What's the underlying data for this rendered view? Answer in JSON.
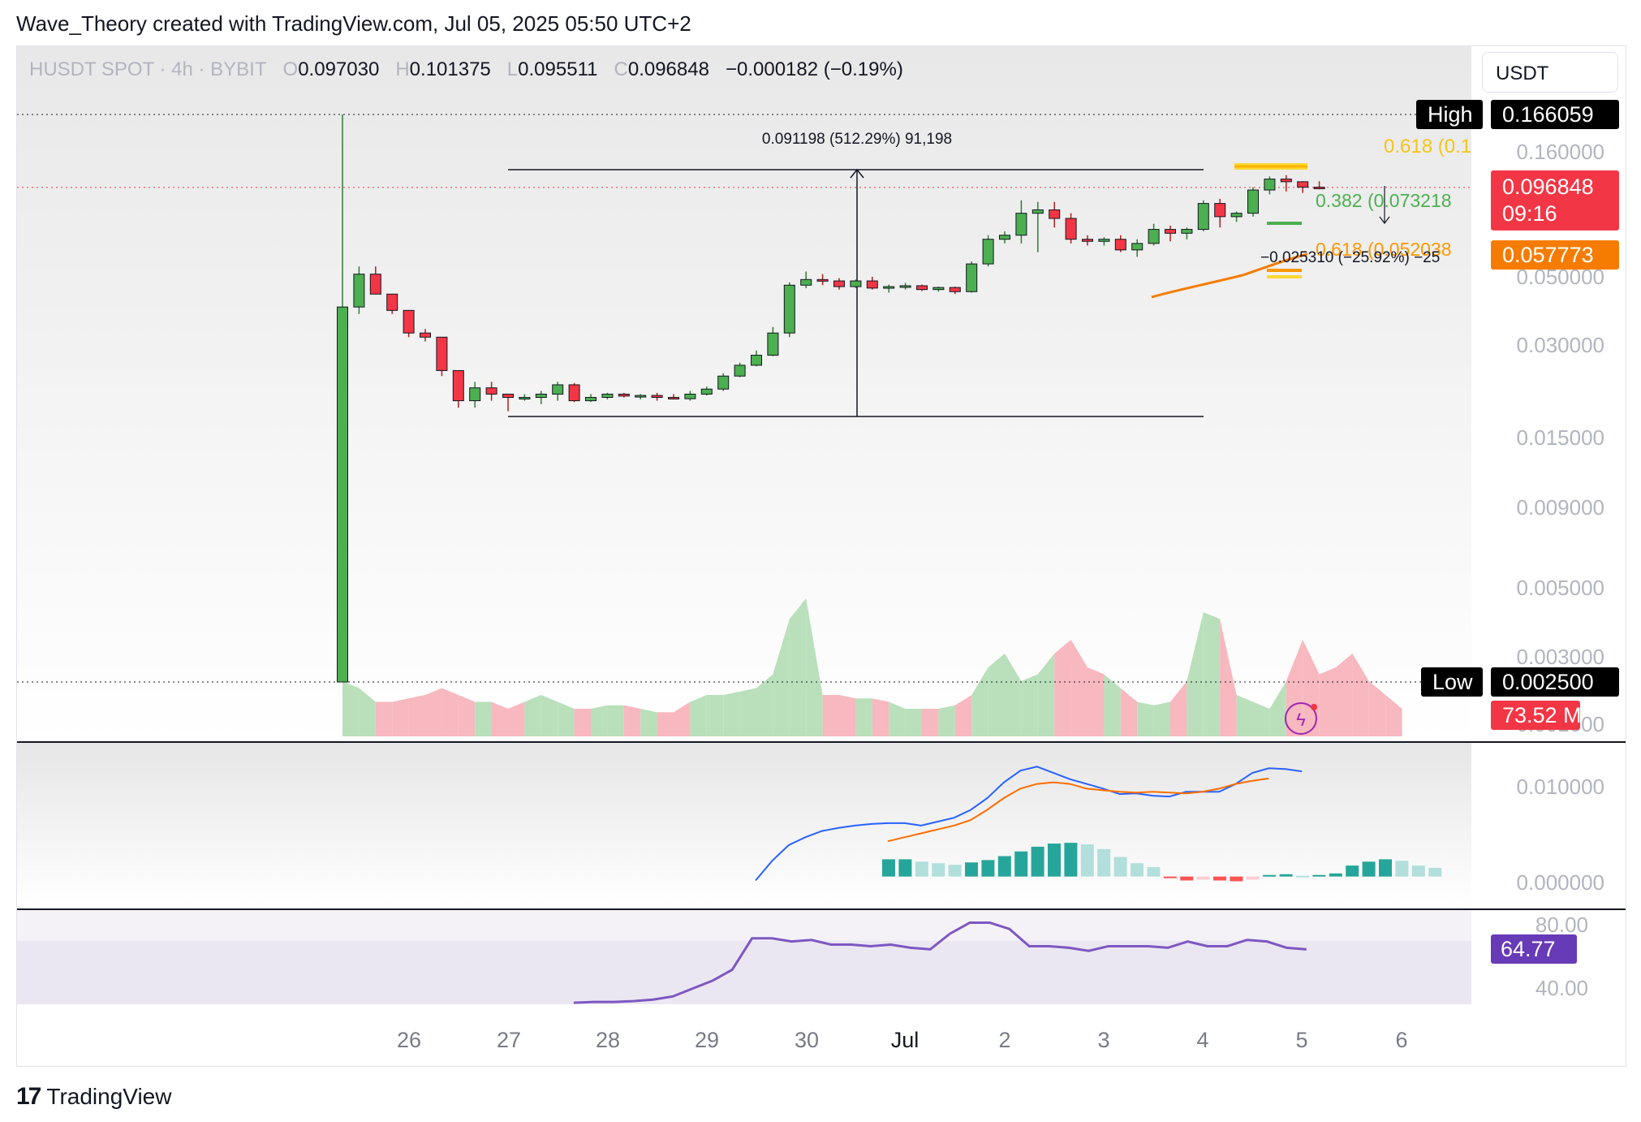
{
  "header": {
    "title": "Wave_Theory created with TradingView.com, Jul 05, 2025 05:50 UTC+2"
  },
  "symbol": {
    "name": "HUSDT SPOT · 4h · BYBIT",
    "o_label": "O",
    "open": "0.097030",
    "h_label": "H",
    "high": "0.101375",
    "l_label": "L",
    "low": "0.095511",
    "c_label": "C",
    "close": "0.096848",
    "change": "−0.000182 (−0.19%)"
  },
  "currency": "USDT",
  "footer": {
    "brand": "TradingView"
  },
  "price_axis": {
    "ticks": [
      "0.160000",
      "0.050000",
      "0.030000",
      "0.015000",
      "0.009000",
      "0.005000",
      "0.003000",
      "0.001000"
    ],
    "high_label": "High",
    "high_value": "0.166059",
    "low_label": "Low",
    "low_value": "0.002500",
    "last_price": "0.096848",
    "countdown": "09:16",
    "ema_value": "0.057773",
    "volume_value": "73.52 M"
  },
  "annotations": {
    "measure": "0.091198 (512.29%) 91,198",
    "fib_top": "0.618 (0.1",
    "fib_382": "0.382 (0.073218",
    "fib_618": "0.618 (0.052038",
    "short_measure": "−0.025310 (−25.92%) −25"
  },
  "macd_axis": {
    "ticks": [
      "0.010000",
      "0.000000"
    ]
  },
  "rsi_axis": {
    "ticks": [
      "80.00",
      "40.00"
    ],
    "value": "64.77"
  },
  "time_axis": {
    "labels": [
      "26",
      "27",
      "28",
      "29",
      "30",
      "Jul",
      "2",
      "3",
      "4",
      "5",
      "6"
    ]
  },
  "colors": {
    "up": "#4caf50",
    "down": "#f23645",
    "ema": "#f57c00",
    "macd": "#2962ff",
    "signal": "#ff6d00",
    "rsi": "#7e57c2"
  },
  "chart_data": [
    {
      "type": "candlestick",
      "title": "HUSDT SPOT · 4h · BYBIT",
      "x": [
        "Jun 26",
        "Jun 27",
        "Jun 28",
        "Jun 29",
        "Jun 30",
        "Jul 1",
        "Jul 2",
        "Jul 3",
        "Jul 4",
        "Jul 5"
      ],
      "scale": "log",
      "ylim": [
        0.001,
        0.17
      ],
      "candles": [
        {
          "o": 0.0025,
          "h": 0.166,
          "l": 0.0025,
          "c": 0.04
        },
        {
          "o": 0.04,
          "h": 0.054,
          "l": 0.038,
          "c": 0.051
        },
        {
          "o": 0.051,
          "h": 0.054,
          "l": 0.044,
          "c": 0.044
        },
        {
          "o": 0.044,
          "h": 0.044,
          "l": 0.038,
          "c": 0.039
        },
        {
          "o": 0.039,
          "h": 0.039,
          "l": 0.032,
          "c": 0.033
        },
        {
          "o": 0.033,
          "h": 0.034,
          "l": 0.031,
          "c": 0.032
        },
        {
          "o": 0.032,
          "h": 0.032,
          "l": 0.024,
          "c": 0.025
        },
        {
          "o": 0.025,
          "h": 0.025,
          "l": 0.019,
          "c": 0.02
        },
        {
          "o": 0.02,
          "h": 0.023,
          "l": 0.019,
          "c": 0.022
        },
        {
          "o": 0.022,
          "h": 0.023,
          "l": 0.02,
          "c": 0.021
        },
        {
          "o": 0.021,
          "h": 0.021,
          "l": 0.0185,
          "c": 0.0205
        },
        {
          "o": 0.0205,
          "h": 0.021,
          "l": 0.02,
          "c": 0.0205
        },
        {
          "o": 0.0205,
          "h": 0.0215,
          "l": 0.0195,
          "c": 0.021
        },
        {
          "o": 0.021,
          "h": 0.023,
          "l": 0.02,
          "c": 0.0225
        },
        {
          "o": 0.0225,
          "h": 0.0228,
          "l": 0.0198,
          "c": 0.02
        },
        {
          "o": 0.02,
          "h": 0.021,
          "l": 0.0198,
          "c": 0.0205
        },
        {
          "o": 0.0205,
          "h": 0.0212,
          "l": 0.0202,
          "c": 0.021
        },
        {
          "o": 0.021,
          "h": 0.0212,
          "l": 0.0205,
          "c": 0.0207
        },
        {
          "o": 0.0207,
          "h": 0.021,
          "l": 0.0202,
          "c": 0.0208
        },
        {
          "o": 0.0208,
          "h": 0.0212,
          "l": 0.02,
          "c": 0.0205
        },
        {
          "o": 0.0205,
          "h": 0.021,
          "l": 0.0202,
          "c": 0.0203
        },
        {
          "o": 0.0203,
          "h": 0.0215,
          "l": 0.02,
          "c": 0.021
        },
        {
          "o": 0.021,
          "h": 0.0222,
          "l": 0.0208,
          "c": 0.0218
        },
        {
          "o": 0.0218,
          "h": 0.0245,
          "l": 0.0215,
          "c": 0.024
        },
        {
          "o": 0.024,
          "h": 0.0265,
          "l": 0.0238,
          "c": 0.026
        },
        {
          "o": 0.026,
          "h": 0.029,
          "l": 0.0258,
          "c": 0.028
        },
        {
          "o": 0.028,
          "h": 0.0345,
          "l": 0.0278,
          "c": 0.033
        },
        {
          "o": 0.033,
          "h": 0.048,
          "l": 0.032,
          "c": 0.047
        },
        {
          "o": 0.047,
          "h": 0.052,
          "l": 0.046,
          "c": 0.049
        },
        {
          "o": 0.049,
          "h": 0.051,
          "l": 0.047,
          "c": 0.0485
        },
        {
          "o": 0.0485,
          "h": 0.0495,
          "l": 0.0455,
          "c": 0.0465
        },
        {
          "o": 0.0465,
          "h": 0.049,
          "l": 0.046,
          "c": 0.0485
        },
        {
          "o": 0.0485,
          "h": 0.05,
          "l": 0.0455,
          "c": 0.046
        },
        {
          "o": 0.046,
          "h": 0.0472,
          "l": 0.0445,
          "c": 0.0465
        },
        {
          "o": 0.0465,
          "h": 0.0478,
          "l": 0.0455,
          "c": 0.0468
        },
        {
          "o": 0.0468,
          "h": 0.0472,
          "l": 0.045,
          "c": 0.0455
        },
        {
          "o": 0.0455,
          "h": 0.0465,
          "l": 0.0448,
          "c": 0.0462
        },
        {
          "o": 0.0462,
          "h": 0.0465,
          "l": 0.044,
          "c": 0.0448
        },
        {
          "o": 0.0448,
          "h": 0.056,
          "l": 0.0445,
          "c": 0.055
        },
        {
          "o": 0.055,
          "h": 0.068,
          "l": 0.054,
          "c": 0.066
        },
        {
          "o": 0.066,
          "h": 0.07,
          "l": 0.064,
          "c": 0.068
        },
        {
          "o": 0.068,
          "h": 0.088,
          "l": 0.064,
          "c": 0.08
        },
        {
          "o": 0.08,
          "h": 0.087,
          "l": 0.06,
          "c": 0.082
        },
        {
          "o": 0.082,
          "h": 0.087,
          "l": 0.072,
          "c": 0.077
        },
        {
          "o": 0.077,
          "h": 0.08,
          "l": 0.064,
          "c": 0.066
        },
        {
          "o": 0.066,
          "h": 0.068,
          "l": 0.063,
          "c": 0.065
        },
        {
          "o": 0.065,
          "h": 0.067,
          "l": 0.063,
          "c": 0.066
        },
        {
          "o": 0.066,
          "h": 0.068,
          "l": 0.06,
          "c": 0.061
        },
        {
          "o": 0.061,
          "h": 0.066,
          "l": 0.058,
          "c": 0.064
        },
        {
          "o": 0.064,
          "h": 0.074,
          "l": 0.063,
          "c": 0.071
        },
        {
          "o": 0.071,
          "h": 0.073,
          "l": 0.065,
          "c": 0.069
        },
        {
          "o": 0.069,
          "h": 0.072,
          "l": 0.066,
          "c": 0.071
        },
        {
          "o": 0.071,
          "h": 0.088,
          "l": 0.07,
          "c": 0.086
        },
        {
          "o": 0.086,
          "h": 0.089,
          "l": 0.072,
          "c": 0.078
        },
        {
          "o": 0.078,
          "h": 0.081,
          "l": 0.075,
          "c": 0.08
        },
        {
          "o": 0.08,
          "h": 0.097,
          "l": 0.078,
          "c": 0.095
        },
        {
          "o": 0.095,
          "h": 0.105,
          "l": 0.092,
          "c": 0.103
        },
        {
          "o": 0.103,
          "h": 0.106,
          "l": 0.094,
          "c": 0.101
        },
        {
          "o": 0.101,
          "h": 0.101375,
          "l": 0.093,
          "c": 0.097
        },
        {
          "o": 0.09703,
          "h": 0.101375,
          "l": 0.095511,
          "c": 0.096848
        }
      ]
    },
    {
      "type": "area",
      "title": "Volume",
      "values": [
        8,
        7,
        5,
        5,
        5.5,
        6,
        7,
        6,
        5,
        5,
        4,
        5,
        6,
        5,
        4,
        4,
        4.5,
        4.5,
        4,
        3.5,
        3.5,
        5,
        6,
        6,
        6.5,
        7,
        9,
        17,
        20,
        6,
        6,
        5.5,
        5.5,
        5,
        4,
        4,
        4,
        4.5,
        6,
        10,
        12,
        8,
        9,
        12,
        14,
        10,
        9,
        7,
        5,
        4.5,
        5,
        8,
        18,
        17,
        6,
        5,
        4,
        8,
        14,
        9,
        10,
        12,
        8,
        6,
        4
      ]
    },
    {
      "type": "line",
      "title": "MACD",
      "ylim": [
        -0.002,
        0.016
      ],
      "series": [
        {
          "name": "MACD",
          "values": [
            -0.0005,
            0.002,
            0.004,
            0.005,
            0.0058,
            0.0062,
            0.0065,
            0.0067,
            0.0068,
            0.0068,
            0.0065,
            0.007,
            0.0075,
            0.0085,
            0.01,
            0.012,
            0.0135,
            0.014,
            0.0132,
            0.0124,
            0.0118,
            0.0112,
            0.0105,
            0.0106,
            0.0103,
            0.0102,
            0.0108,
            0.0108,
            0.0108,
            0.0118,
            0.0132,
            0.0138,
            0.0137,
            0.0134
          ]
        },
        {
          "name": "Signal",
          "values": [
            0.0045,
            0.005,
            0.0055,
            0.006,
            0.0065,
            0.0072,
            0.0085,
            0.01,
            0.0112,
            0.0118,
            0.012,
            0.0118,
            0.0112,
            0.011,
            0.0108,
            0.0107,
            0.0108,
            0.0107,
            0.0106,
            0.0108,
            0.0112,
            0.0118,
            0.0122,
            0.0125
          ]
        }
      ],
      "histogram": [
        0.0022,
        0.0022,
        0.0019,
        0.0017,
        0.0015,
        0.0018,
        0.0021,
        0.0026,
        0.0032,
        0.0038,
        0.0042,
        0.0043,
        0.0041,
        0.0035,
        0.0025,
        0.0017,
        0.0012,
        -0.0002,
        -0.0005,
        -0.0004,
        -0.0005,
        -0.0006,
        -0.0004,
        0.0002,
        0.0003,
        0.0001,
        0.0002,
        0.0004,
        0.0014,
        0.0019,
        0.0022,
        0.002,
        0.0014,
        0.0011
      ]
    },
    {
      "type": "line",
      "title": "RSI",
      "ylim": [
        30,
        90
      ],
      "series": [
        {
          "name": "RSI",
          "values": [
            31,
            31.5,
            31.5,
            32,
            33,
            35,
            40,
            45,
            52,
            72,
            72,
            70,
            71,
            68,
            68,
            67,
            68,
            66,
            65,
            75,
            82,
            82,
            78,
            67,
            67,
            66,
            64,
            67,
            67,
            67,
            66,
            70,
            67,
            67,
            71,
            70,
            66,
            65
          ]
        }
      ]
    }
  ]
}
